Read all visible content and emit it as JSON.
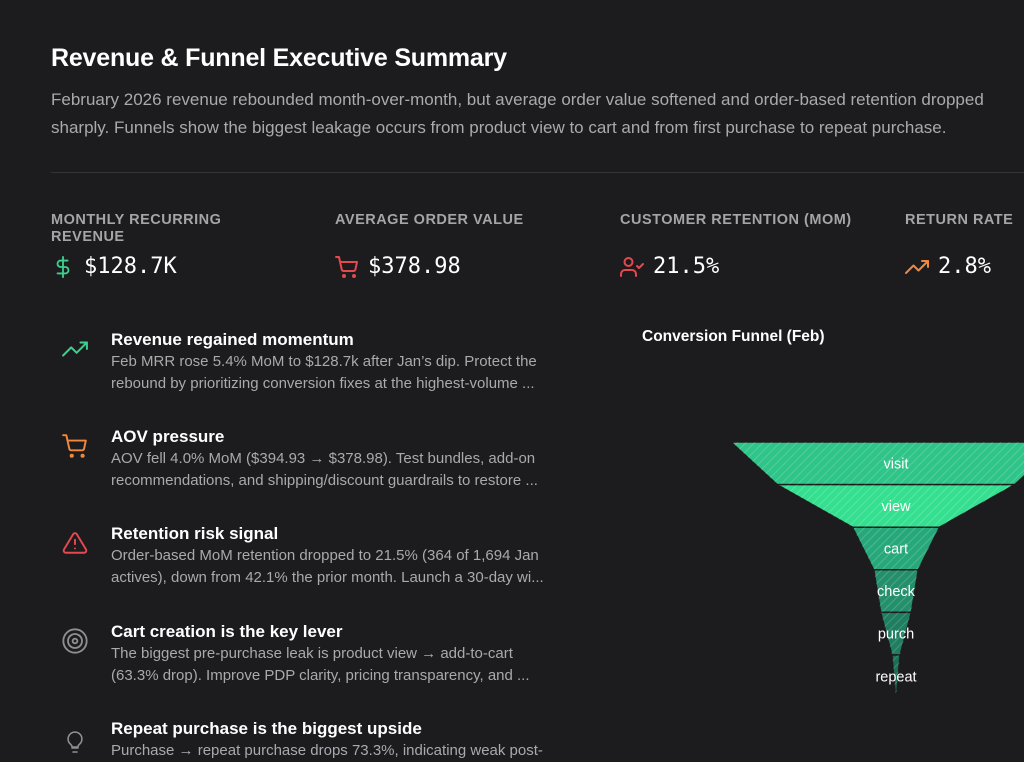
{
  "header": {
    "title": "Revenue & Funnel Executive Summary",
    "subtitle_line1": "February 2026 revenue rebounded month-over-month, but average order value softened and order-based retention dropped",
    "subtitle_line2": "sharply. Funnels show the biggest leakage occurs from product view to cart and from first purchase to repeat purchase."
  },
  "kpis": [
    {
      "label_line1": "MONTHLY RECURRING",
      "label_line2": "REVENUE",
      "value": "$128.7K",
      "icon": "dollar-icon",
      "color": "#3ecf8e"
    },
    {
      "label_line1": "AVERAGE ORDER VALUE",
      "label_line2": "",
      "value": "$378.98",
      "icon": "cart-icon",
      "color": "#e5484d"
    },
    {
      "label_line1": "CUSTOMER RETENTION (MOM)",
      "label_line2": "",
      "value": "21.5%",
      "icon": "user-check-icon",
      "color": "#e5484d"
    },
    {
      "label_line1": "RETURN RATE",
      "label_line2": "",
      "value": "2.8%",
      "icon": "trending-up-icon",
      "color": "#f0883e"
    }
  ],
  "insights": [
    {
      "title": "Revenue regained momentum",
      "line1": "Feb MRR rose 5.4% MoM to $128.7k after Jan’s dip. Protect the",
      "line2": "rebound by prioritizing conversion fixes at the highest-volume ...",
      "icon": "trending-up-icon",
      "color": "#3ecf8e"
    },
    {
      "title": "AOV pressure",
      "line1": "AOV fell 4.0% MoM ($394.93 → $378.98). Test bundles, add-on",
      "line2": "recommendations, and shipping/discount guardrails to restore ...",
      "icon": "cart-icon",
      "color": "#f0883e"
    },
    {
      "title": "Retention risk signal",
      "line1": "Order-based MoM retention dropped to 21.5% (364 of 1,694 Jan",
      "line2": "actives), down from 42.1% the prior month. Launch a 30-day wi...",
      "icon": "warning-icon",
      "color": "#e5484d"
    },
    {
      "title": "Cart creation is the key lever",
      "line1": "The biggest pre-purchase leak is product view → add-to-cart",
      "line2": "(63.3% drop). Improve PDP clarity, pricing transparency, and ...",
      "icon": "target-icon",
      "color": "#8e8e93"
    },
    {
      "title": "Repeat purchase is the biggest upside",
      "line1": "Purchase → repeat purchase drops 73.3%, indicating weak post-",
      "line2": "",
      "icon": "lightbulb-icon",
      "color": "#8e8e93"
    }
  ],
  "chart_data": {
    "type": "funnel",
    "title": "Conversion Funnel (Feb)",
    "categories": [
      "visit",
      "view",
      "cart",
      "check",
      "purch",
      "repeat"
    ],
    "values": [
      100,
      72,
      26.4,
      13.5,
      9.3,
      2.5
    ]
  }
}
